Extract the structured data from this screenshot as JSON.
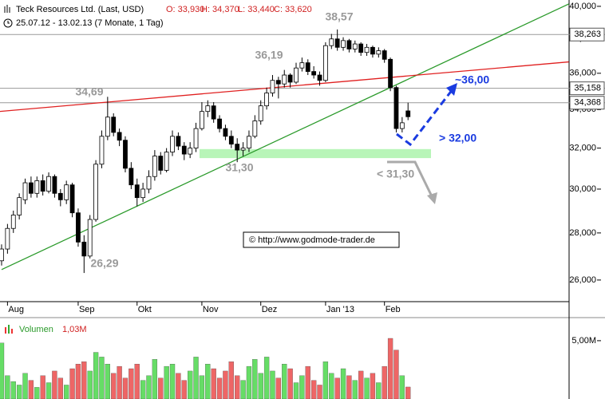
{
  "chart_data": {
    "type": "candlestick",
    "title": "Teck Resources Ltd. (Last, USD)",
    "ohlc_labels": [
      "O: 33,930",
      "H: 34,370",
      "L: 33,440",
      "C: 33,620"
    ],
    "subtitle": "25.07.12 - 13.02.13 (7 Monate, 1 Tag)",
    "categories": [
      null,
      "Aug",
      null,
      null,
      null,
      null,
      null,
      null,
      null,
      null,
      null,
      null,
      null,
      "Sep",
      null,
      null,
      null,
      null,
      null,
      null,
      null,
      null,
      null,
      "Okt",
      null,
      null,
      null,
      null,
      null,
      null,
      null,
      null,
      null,
      null,
      "Nov",
      null,
      null,
      null,
      null,
      null,
      null,
      null,
      null,
      null,
      "Dez",
      null,
      null,
      null,
      null,
      null,
      null,
      null,
      null,
      null,
      null,
      "Jan '13",
      null,
      null,
      null,
      null,
      null,
      null,
      null,
      null,
      null,
      "Feb",
      null,
      null,
      null,
      null
    ],
    "candles": [
      [
        26.8,
        27.5,
        26.6,
        27.3
      ],
      [
        27.3,
        28.4,
        27.1,
        28.2
      ],
      [
        28.2,
        29.0,
        28.0,
        28.8
      ],
      [
        28.8,
        29.8,
        28.6,
        29.6
      ],
      [
        29.5,
        30.5,
        29.3,
        30.3
      ],
      [
        30.3,
        30.6,
        29.6,
        29.8
      ],
      [
        29.8,
        30.6,
        29.6,
        30.4
      ],
      [
        30.4,
        30.7,
        29.7,
        29.9
      ],
      [
        29.9,
        30.8,
        29.8,
        30.6
      ],
      [
        30.6,
        30.7,
        29.6,
        29.8
      ],
      [
        29.8,
        30.0,
        29.2,
        29.5
      ],
      [
        29.5,
        30.4,
        29.3,
        30.2
      ],
      [
        30.2,
        30.3,
        28.7,
        28.9
      ],
      [
        28.9,
        29.1,
        27.4,
        27.6
      ],
      [
        27.6,
        27.9,
        26.29,
        27.0
      ],
      [
        27.0,
        28.8,
        26.9,
        28.6
      ],
      [
        28.6,
        31.4,
        28.5,
        31.2
      ],
      [
        31.2,
        32.9,
        31.0,
        32.6
      ],
      [
        32.6,
        34.69,
        32.4,
        33.6
      ],
      [
        33.6,
        33.8,
        32.6,
        32.8
      ],
      [
        32.8,
        33.0,
        32.1,
        32.4
      ],
      [
        32.4,
        32.6,
        30.8,
        31.0
      ],
      [
        31.0,
        31.3,
        30.0,
        30.2
      ],
      [
        30.2,
        30.5,
        29.2,
        29.6
      ],
      [
        29.6,
        30.3,
        29.4,
        30.0
      ],
      [
        30.0,
        30.9,
        29.8,
        30.6
      ],
      [
        30.6,
        31.9,
        30.4,
        31.6
      ],
      [
        31.6,
        31.8,
        30.7,
        30.9
      ],
      [
        30.9,
        32.0,
        30.8,
        31.8
      ],
      [
        31.8,
        32.9,
        31.6,
        32.6
      ],
      [
        32.6,
        32.8,
        31.9,
        32.1
      ],
      [
        32.1,
        32.3,
        31.4,
        31.7
      ],
      [
        31.7,
        32.3,
        31.5,
        32.0
      ],
      [
        32.0,
        33.3,
        31.8,
        33.0
      ],
      [
        33.0,
        34.4,
        32.9,
        33.9
      ],
      [
        33.9,
        34.5,
        33.6,
        34.2
      ],
      [
        34.2,
        34.4,
        33.3,
        33.5
      ],
      [
        33.5,
        33.7,
        32.8,
        33.0
      ],
      [
        33.0,
        33.2,
        32.4,
        32.6
      ],
      [
        32.6,
        32.9,
        32.0,
        32.2
      ],
      [
        32.2,
        32.5,
        31.3,
        31.9
      ],
      [
        31.9,
        32.3,
        31.6,
        32.0
      ],
      [
        32.0,
        32.9,
        31.8,
        32.6
      ],
      [
        32.6,
        33.7,
        32.5,
        33.4
      ],
      [
        33.4,
        34.5,
        33.2,
        34.2
      ],
      [
        34.2,
        35.2,
        34.0,
        34.9
      ],
      [
        34.9,
        35.9,
        34.7,
        35.6
      ],
      [
        35.6,
        35.8,
        34.6,
        35.4
      ],
      [
        35.4,
        36.19,
        35.2,
        35.9
      ],
      [
        35.9,
        36.0,
        35.2,
        35.5
      ],
      [
        35.5,
        36.6,
        35.4,
        36.3
      ],
      [
        36.3,
        36.9,
        36.1,
        36.6
      ],
      [
        36.6,
        36.8,
        35.9,
        36.1
      ],
      [
        36.1,
        36.4,
        35.7,
        35.9
      ],
      [
        35.9,
        36.1,
        35.3,
        35.6
      ],
      [
        35.6,
        37.8,
        35.5,
        37.6
      ],
      [
        37.6,
        38.3,
        37.4,
        38.0
      ],
      [
        38.0,
        38.57,
        37.3,
        37.5
      ],
      [
        37.5,
        38.1,
        37.3,
        37.9
      ],
      [
        37.9,
        38.0,
        37.2,
        37.4
      ],
      [
        37.4,
        37.9,
        37.2,
        37.7
      ],
      [
        37.7,
        37.8,
        37.0,
        37.2
      ],
      [
        37.2,
        37.7,
        37.0,
        37.5
      ],
      [
        37.5,
        37.6,
        36.9,
        37.1
      ],
      [
        37.1,
        37.5,
        36.9,
        37.3
      ],
      [
        37.3,
        37.4,
        36.6,
        36.8
      ],
      [
        36.8,
        36.9,
        35.0,
        35.2
      ],
      [
        35.2,
        35.3,
        32.8,
        33.0
      ],
      [
        33.0,
        33.6,
        32.8,
        33.3
      ],
      [
        33.93,
        34.37,
        33.44,
        33.62
      ]
    ],
    "log_scale": true,
    "ylim": [
      25.13,
      40.4
    ],
    "yticks": [
      {
        "value": 26,
        "label": "26,000"
      },
      {
        "value": 28,
        "label": "28,000"
      },
      {
        "value": 30,
        "label": "30,000"
      },
      {
        "value": 32,
        "label": "32,000"
      },
      {
        "value": 34,
        "label": "34,000"
      },
      {
        "value": 36,
        "label": "36,000"
      },
      {
        "value": 38,
        "label": "38,000"
      },
      {
        "value": 40,
        "label": "40,000"
      }
    ],
    "levels": [
      {
        "value": 38.263,
        "label": "38,263"
      },
      {
        "value": 35.158,
        "label": "35,158"
      },
      {
        "value": 34.368,
        "label": "34,368"
      }
    ],
    "trendlines": [
      {
        "color": "#2a9a2a",
        "points": [
          [
            0,
            26.43
          ],
          [
            96.3,
            40.15
          ]
        ]
      },
      {
        "color": "#e02020",
        "points": [
          [
            -0.27,
            33.9
          ],
          [
            96.3,
            36.65
          ]
        ]
      }
    ],
    "zone": {
      "color": "#b8f5b8",
      "x": [
        33.6,
        72.9
      ],
      "y": [
        31.5,
        31.95
      ]
    },
    "annotations": [
      "38,57",
      "34,69",
      "36,19",
      "31,30",
      "26,29"
    ],
    "targets": [
      "~36,00",
      "> 32,00",
      "< 31,30"
    ],
    "copyright": "© http://www.godmode-trader.de",
    "volume_title": "Volumen",
    "volume_label": "1,03M",
    "volume": [
      4.8,
      2.0,
      1.5,
      1.2,
      2.2,
      1.6,
      1.0,
      2.0,
      1.4,
      2.4,
      1.8,
      1.2,
      2.6,
      3.0,
      3.2,
      2.4,
      4.0,
      3.6,
      3.0,
      2.2,
      2.8,
      1.8,
      2.6,
      3.0,
      1.6,
      2.0,
      3.4,
      1.8,
      2.8,
      3.0,
      2.2,
      1.6,
      2.4,
      3.6,
      2.0,
      3.0,
      2.6,
      1.8,
      2.4,
      3.2,
      2.0,
      1.6,
      2.8,
      3.4,
      2.2,
      3.6,
      2.4,
      1.8,
      3.0,
      2.6,
      1.4,
      2.0,
      2.8,
      1.6,
      1.2,
      3.2,
      2.2,
      1.8,
      2.6,
      2.0,
      1.6,
      2.4,
      1.8,
      2.2,
      1.4,
      2.8,
      5.2,
      4.2,
      2.0,
      1.03
    ],
    "volume_ylim": [
      0,
      6.5
    ],
    "volume_yticks": [
      {
        "value": 5,
        "label": "5,00M"
      }
    ],
    "up_color": "#66dd66",
    "down_color": "#ee6666"
  }
}
